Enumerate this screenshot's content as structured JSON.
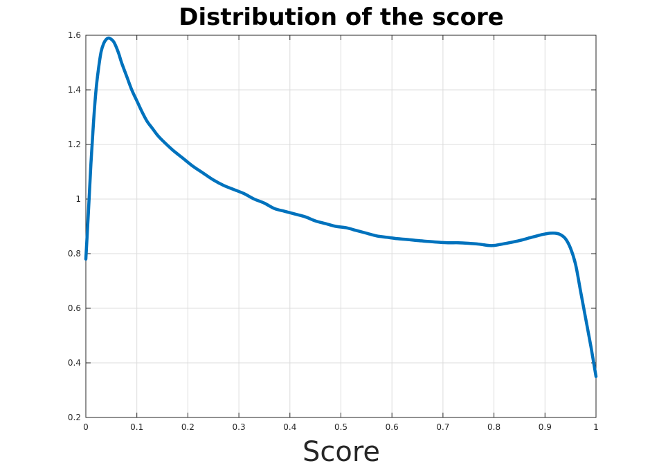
{
  "chart_data": {
    "type": "line",
    "title": "Distribution of the score",
    "xlabel": "Score",
    "ylabel": "",
    "xlim": [
      0,
      1
    ],
    "ylim": [
      0.2,
      1.6
    ],
    "xticks": [
      0,
      0.1,
      0.2,
      0.3,
      0.4,
      0.5,
      0.6,
      0.7,
      0.8,
      0.9,
      1
    ],
    "xtick_labels": [
      "0",
      "0.1",
      "0.2",
      "0.3",
      "0.4",
      "0.5",
      "0.6",
      "0.7",
      "0.8",
      "0.9",
      "1"
    ],
    "yticks": [
      0.2,
      0.4,
      0.6,
      0.8,
      1,
      1.2,
      1.4,
      1.6
    ],
    "ytick_labels": [
      "0.2",
      "0.4",
      "0.6",
      "0.8",
      "1",
      "1.2",
      "1.4",
      "1.6"
    ],
    "grid": true,
    "colors": {
      "line": "#0072BD"
    },
    "series": [
      {
        "x": [
          0,
          0.005,
          0.01,
          0.015,
          0.02,
          0.025,
          0.03,
          0.035,
          0.04,
          0.045,
          0.05,
          0.055,
          0.06,
          0.065,
          0.07,
          0.08,
          0.09,
          0.1,
          0.11,
          0.12,
          0.13,
          0.14,
          0.15,
          0.17,
          0.19,
          0.21,
          0.23,
          0.25,
          0.27,
          0.29,
          0.31,
          0.33,
          0.35,
          0.37,
          0.39,
          0.41,
          0.43,
          0.45,
          0.47,
          0.49,
          0.51,
          0.53,
          0.55,
          0.57,
          0.59,
          0.61,
          0.63,
          0.65,
          0.67,
          0.69,
          0.71,
          0.73,
          0.75,
          0.77,
          0.79,
          0.8,
          0.81,
          0.83,
          0.85,
          0.87,
          0.89,
          0.9,
          0.91,
          0.92,
          0.93,
          0.94,
          0.95,
          0.96,
          0.97,
          0.98,
          0.99,
          1
        ],
        "y": [
          0.78,
          0.95,
          1.13,
          1.28,
          1.4,
          1.48,
          1.54,
          1.57,
          1.585,
          1.59,
          1.585,
          1.575,
          1.555,
          1.53,
          1.5,
          1.45,
          1.4,
          1.36,
          1.32,
          1.285,
          1.26,
          1.235,
          1.215,
          1.18,
          1.15,
          1.12,
          1.095,
          1.07,
          1.05,
          1.035,
          1.02,
          1.0,
          0.985,
          0.965,
          0.955,
          0.945,
          0.935,
          0.92,
          0.91,
          0.9,
          0.895,
          0.885,
          0.875,
          0.865,
          0.86,
          0.855,
          0.852,
          0.848,
          0.845,
          0.842,
          0.84,
          0.84,
          0.838,
          0.835,
          0.83,
          0.83,
          0.833,
          0.84,
          0.848,
          0.858,
          0.868,
          0.872,
          0.875,
          0.875,
          0.87,
          0.855,
          0.82,
          0.76,
          0.66,
          0.56,
          0.46,
          0.35
        ]
      }
    ]
  }
}
